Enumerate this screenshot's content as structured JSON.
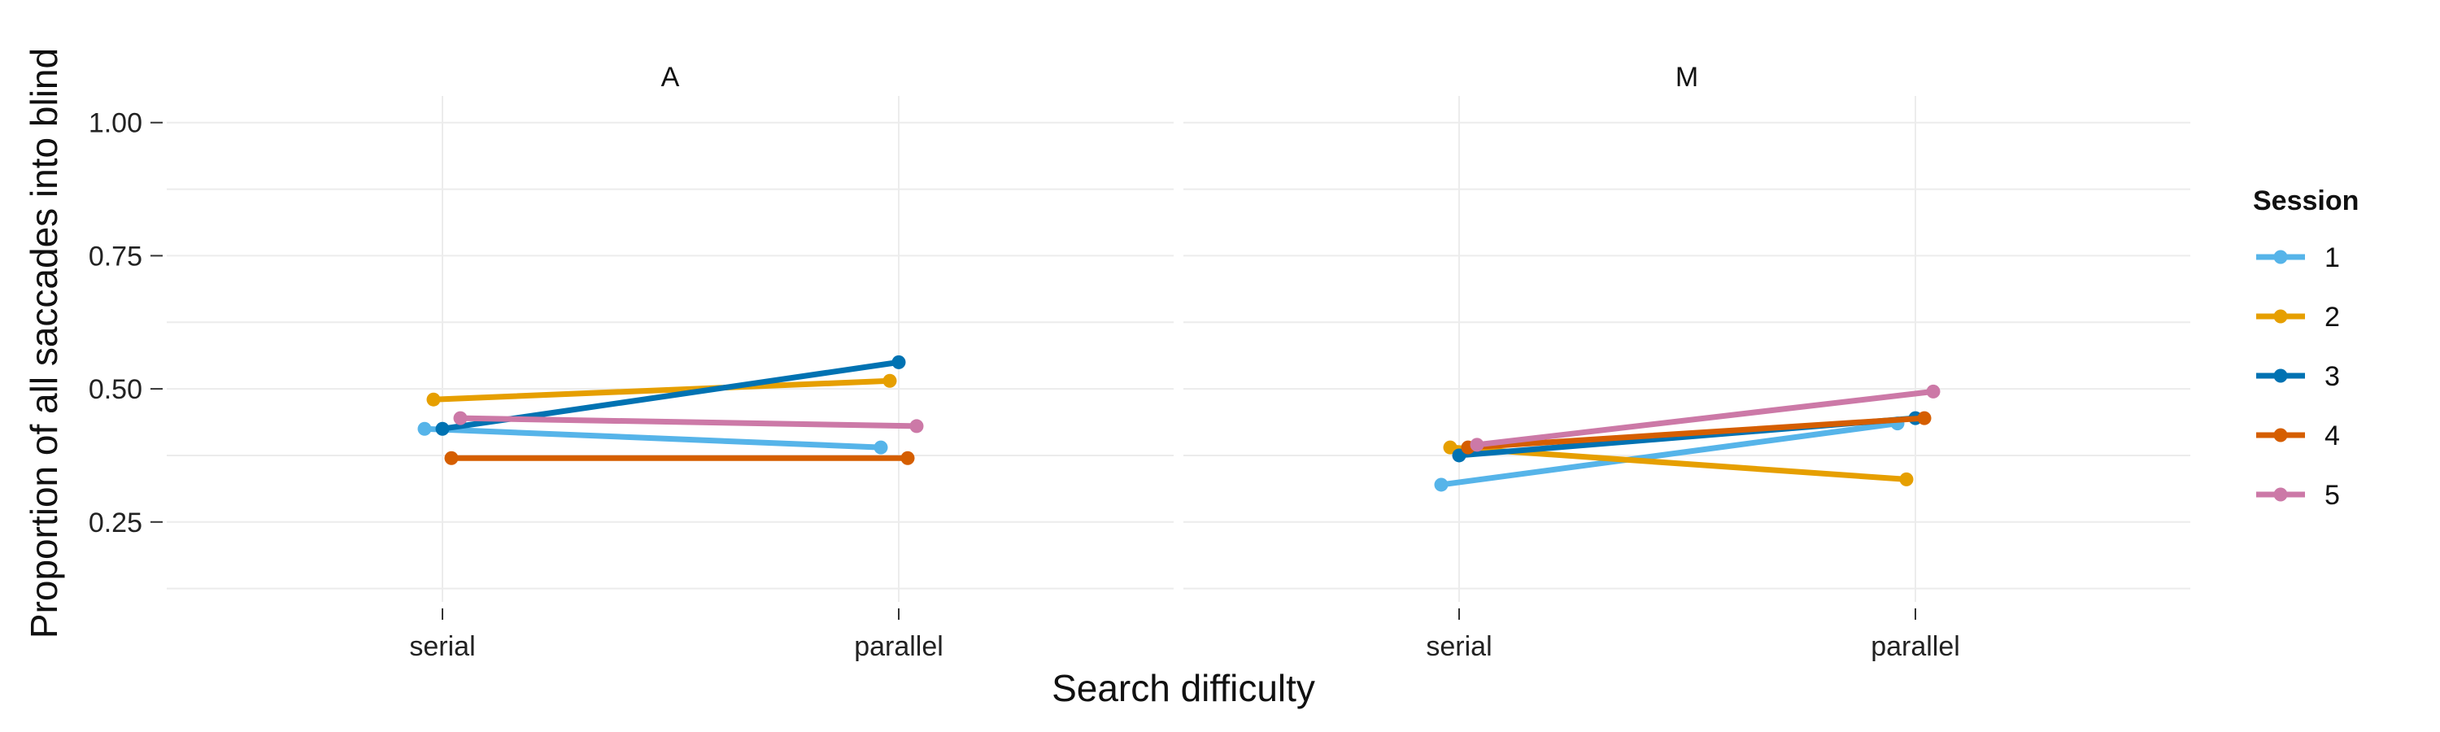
{
  "chart_data": {
    "type": "line",
    "xlabel": "Search difficulty",
    "ylabel": "Proportion of all saccades into blind",
    "categories": [
      "serial",
      "parallel"
    ],
    "ylim": [
      0.1,
      1.05
    ],
    "yticks": [
      "0.25",
      "0.50",
      "0.75",
      "1.00"
    ],
    "grid": true,
    "legend": {
      "title": "Session",
      "placement": "right"
    },
    "panels": [
      {
        "label": "A",
        "series": [
          {
            "name": "1",
            "color": "#56B4E9",
            "values": [
              0.425,
              0.39
            ]
          },
          {
            "name": "2",
            "color": "#E69F00",
            "values": [
              0.48,
              0.515
            ]
          },
          {
            "name": "3",
            "color": "#0072B2",
            "values": [
              0.425,
              0.55
            ]
          },
          {
            "name": "4",
            "color": "#D55E00",
            "values": [
              0.37,
              0.37
            ]
          },
          {
            "name": "5",
            "color": "#CC79A7",
            "values": [
              0.445,
              0.43
            ]
          }
        ]
      },
      {
        "label": "M",
        "series": [
          {
            "name": "1",
            "color": "#56B4E9",
            "values": [
              0.32,
              0.435
            ]
          },
          {
            "name": "2",
            "color": "#E69F00",
            "values": [
              0.39,
              0.33
            ]
          },
          {
            "name": "3",
            "color": "#0072B2",
            "values": [
              0.375,
              0.445
            ]
          },
          {
            "name": "4",
            "color": "#D55E00",
            "values": [
              0.39,
              0.445
            ]
          },
          {
            "name": "5",
            "color": "#CC79A7",
            "values": [
              0.395,
              0.495
            ]
          }
        ]
      }
    ]
  }
}
